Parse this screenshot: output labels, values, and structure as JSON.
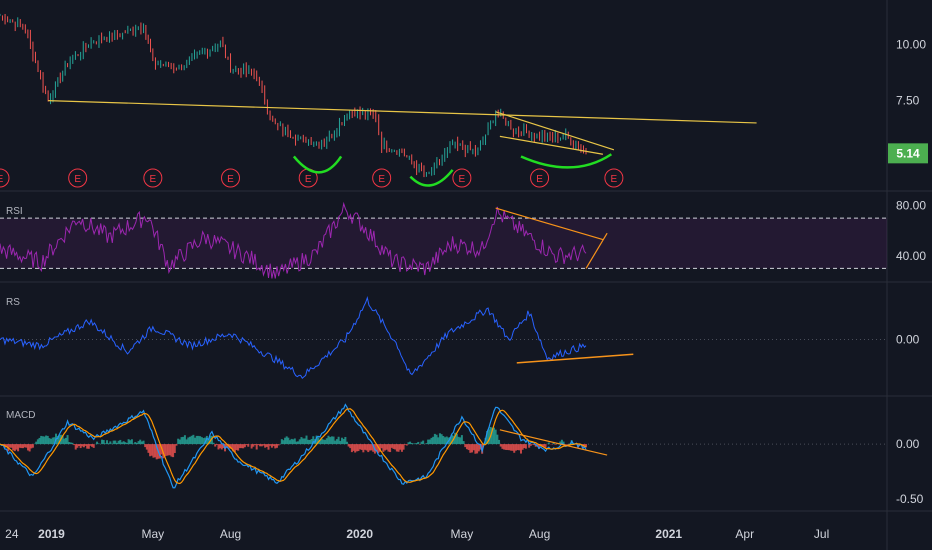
{
  "chart_data": [
    {
      "type": "line",
      "panel": "price",
      "ylim": [
        3.5,
        12
      ],
      "yticks": [
        "10.00",
        "7.50"
      ],
      "last_price": "5.14",
      "last_price_color": "#4caf50",
      "earnings_marker_label": "E",
      "earnings_dates": [
        "2018-11-01",
        "2019-02-01",
        "2019-05-01",
        "2019-08-01",
        "2019-11-01",
        "2020-01-27",
        "2020-05-01",
        "2020-08-01",
        "2020-10-28"
      ],
      "series": [
        {
          "values": [
            {
              "x": "2018-11-01",
              "y": 11.3
            },
            {
              "x": "2018-12-01",
              "y": 10.7
            },
            {
              "x": "2018-12-28",
              "y": 7.5
            },
            {
              "x": "2019-01-20",
              "y": 9.2
            },
            {
              "x": "2019-02-20",
              "y": 10.2
            },
            {
              "x": "2019-03-20",
              "y": 10.4
            },
            {
              "x": "2019-04-20",
              "y": 10.9
            },
            {
              "x": "2019-05-01",
              "y": 9.2
            },
            {
              "x": "2019-06-01",
              "y": 9.0
            },
            {
              "x": "2019-07-20",
              "y": 10.1
            },
            {
              "x": "2019-08-01",
              "y": 9.0
            },
            {
              "x": "2019-09-01",
              "y": 8.6
            },
            {
              "x": "2019-09-20",
              "y": 6.5
            },
            {
              "x": "2019-10-20",
              "y": 5.8
            },
            {
              "x": "2019-11-20",
              "y": 5.6
            },
            {
              "x": "2019-12-20",
              "y": 7.0
            },
            {
              "x": "2020-01-20",
              "y": 6.8
            },
            {
              "x": "2020-01-27",
              "y": 5.5
            },
            {
              "x": "2020-02-20",
              "y": 5.2
            },
            {
              "x": "2020-03-20",
              "y": 4.1
            },
            {
              "x": "2020-04-20",
              "y": 5.5
            },
            {
              "x": "2020-05-20",
              "y": 5.2
            },
            {
              "x": "2020-06-10",
              "y": 7.0
            },
            {
              "x": "2020-07-01",
              "y": 6.2
            },
            {
              "x": "2020-08-01",
              "y": 5.9
            },
            {
              "x": "2020-09-01",
              "y": 5.9
            },
            {
              "x": "2020-09-25",
              "y": 5.14
            }
          ]
        }
      ],
      "trendlines": [
        {
          "color": "#e8c547",
          "points": [
            {
              "x": "2018-12-28",
              "y": 7.5
            },
            {
              "x": "2021-04-15",
              "y": 6.5
            }
          ]
        },
        {
          "color": "#e8c547",
          "points": [
            {
              "x": "2020-06-10",
              "y": 7.0
            },
            {
              "x": "2020-10-28",
              "y": 5.3
            }
          ]
        },
        {
          "color": "#e8c547",
          "points": [
            {
              "x": "2020-06-15",
              "y": 5.9
            },
            {
              "x": "2020-10-15",
              "y": 5.1
            }
          ]
        }
      ],
      "highlight_curves": [
        {
          "color": "#22dd22",
          "points": [
            {
              "x": "2019-10-15",
              "y": 5.0
            },
            {
              "x": "2019-11-15",
              "y": 4.2
            },
            {
              "x": "2019-12-10",
              "y": 5.0
            }
          ]
        },
        {
          "color": "#22dd22",
          "points": [
            {
              "x": "2020-03-01",
              "y": 4.1
            },
            {
              "x": "2020-03-25",
              "y": 3.8
            },
            {
              "x": "2020-04-20",
              "y": 4.4
            }
          ]
        },
        {
          "color": "#22dd22",
          "points": [
            {
              "x": "2020-07-10",
              "y": 5.0
            },
            {
              "x": "2020-09-10",
              "y": 4.6
            },
            {
              "x": "2020-10-25",
              "y": 5.1
            }
          ]
        }
      ]
    },
    {
      "type": "line",
      "panel": "rsi",
      "label": "RSI",
      "ylim": [
        20,
        90
      ],
      "yticks": [
        "80.00",
        "40.00"
      ],
      "bands": [
        70,
        30
      ],
      "color": "#9c27b0",
      "series": [
        {
          "values": [
            {
              "x": "2018-11-01",
              "y": 45
            },
            {
              "x": "2018-12-20",
              "y": 35
            },
            {
              "x": "2019-02-01",
              "y": 70
            },
            {
              "x": "2019-03-10",
              "y": 55
            },
            {
              "x": "2019-04-25",
              "y": 72
            },
            {
              "x": "2019-05-20",
              "y": 32
            },
            {
              "x": "2019-07-01",
              "y": 55
            },
            {
              "x": "2019-08-20",
              "y": 40
            },
            {
              "x": "2019-09-25",
              "y": 25
            },
            {
              "x": "2019-11-10",
              "y": 42
            },
            {
              "x": "2019-12-15",
              "y": 78
            },
            {
              "x": "2020-01-10",
              "y": 60
            },
            {
              "x": "2020-02-10",
              "y": 35
            },
            {
              "x": "2020-03-20",
              "y": 30
            },
            {
              "x": "2020-04-20",
              "y": 50
            },
            {
              "x": "2020-05-25",
              "y": 45
            },
            {
              "x": "2020-06-10",
              "y": 75
            },
            {
              "x": "2020-07-20",
              "y": 55
            },
            {
              "x": "2020-08-20",
              "y": 40
            },
            {
              "x": "2020-09-25",
              "y": 42
            }
          ]
        }
      ],
      "trendlines": [
        {
          "color": "#f7931a",
          "points": [
            {
              "x": "2020-06-10",
              "y": 78
            },
            {
              "x": "2020-10-15",
              "y": 53
            }
          ]
        },
        {
          "color": "#f7931a",
          "points": [
            {
              "x": "2020-09-25",
              "y": 30
            },
            {
              "x": "2020-10-20",
              "y": 58
            }
          ]
        }
      ]
    },
    {
      "type": "line",
      "panel": "rs",
      "label": "RS",
      "ylim": [
        -0.45,
        0.45
      ],
      "yticks": [
        "0.00"
      ],
      "color": "#2962ff",
      "series": [
        {
          "values": [
            {
              "x": "2018-11-01",
              "y": 0.0
            },
            {
              "x": "2018-12-20",
              "y": -0.05
            },
            {
              "x": "2019-02-15",
              "y": 0.15
            },
            {
              "x": "2019-04-01",
              "y": -0.1
            },
            {
              "x": "2019-05-01",
              "y": 0.1
            },
            {
              "x": "2019-06-15",
              "y": -0.05
            },
            {
              "x": "2019-08-01",
              "y": 0.05
            },
            {
              "x": "2019-09-20",
              "y": -0.15
            },
            {
              "x": "2019-10-25",
              "y": -0.3
            },
            {
              "x": "2019-12-15",
              "y": 0.0
            },
            {
              "x": "2020-01-10",
              "y": 0.32
            },
            {
              "x": "2020-02-15",
              "y": -0.05
            },
            {
              "x": "2020-03-01",
              "y": -0.3
            },
            {
              "x": "2020-04-15",
              "y": 0.05
            },
            {
              "x": "2020-06-01",
              "y": 0.25
            },
            {
              "x": "2020-06-25",
              "y": 0.0
            },
            {
              "x": "2020-07-20",
              "y": 0.22
            },
            {
              "x": "2020-08-10",
              "y": -0.15
            },
            {
              "x": "2020-09-10",
              "y": -0.08
            },
            {
              "x": "2020-09-25",
              "y": -0.05
            }
          ]
        }
      ],
      "trendlines": [
        {
          "color": "#f7931a",
          "points": [
            {
              "x": "2020-07-05",
              "y": -0.19
            },
            {
              "x": "2020-11-20",
              "y": -0.12
            }
          ]
        }
      ]
    },
    {
      "type": "line",
      "panel": "macd",
      "label": "MACD",
      "ylim": [
        -0.6,
        0.42
      ],
      "yticks": [
        "0.00",
        "-0.50"
      ],
      "macd_color": "#2196f3",
      "signal_color": "#ff9800",
      "histogram_colors": [
        "#26a69a",
        "#ef5350"
      ],
      "series": [
        {
          "name": "",
          "values": [
            {
              "x": "2018-11-01",
              "y": 0.0
            },
            {
              "x": "2018-12-10",
              "y": -0.3
            },
            {
              "x": "2019-01-20",
              "y": 0.2
            },
            {
              "x": "2019-02-20",
              "y": 0.05
            },
            {
              "x": "2019-04-20",
              "y": 0.3
            },
            {
              "x": "2019-05-25",
              "y": -0.4
            },
            {
              "x": "2019-07-10",
              "y": 0.1
            },
            {
              "x": "2019-08-10",
              "y": -0.15
            },
            {
              "x": "2019-09-25",
              "y": -0.35
            },
            {
              "x": "2019-10-20",
              "y": -0.15
            },
            {
              "x": "2019-12-15",
              "y": 0.35
            },
            {
              "x": "2020-01-15",
              "y": 0.0
            },
            {
              "x": "2020-02-20",
              "y": -0.35
            },
            {
              "x": "2020-03-20",
              "y": -0.3
            },
            {
              "x": "2020-05-01",
              "y": 0.25
            },
            {
              "x": "2020-05-25",
              "y": -0.05
            },
            {
              "x": "2020-06-10",
              "y": 0.35
            },
            {
              "x": "2020-07-10",
              "y": 0.05
            },
            {
              "x": "2020-08-10",
              "y": -0.05
            },
            {
              "x": "2020-09-10",
              "y": 0.02
            },
            {
              "x": "2020-09-25",
              "y": -0.05
            }
          ]
        }
      ],
      "trendlines": [
        {
          "color": "#f7931a",
          "points": [
            {
              "x": "2020-06-15",
              "y": 0.13
            },
            {
              "x": "2020-10-20",
              "y": -0.1
            }
          ]
        }
      ]
    }
  ],
  "time_axis": {
    "labels": [
      {
        "text": "24",
        "date": "2018-11-15",
        "bold": false
      },
      {
        "text": "2019",
        "date": "2019-01-01",
        "bold": true
      },
      {
        "text": "May",
        "date": "2019-05-01",
        "bold": false
      },
      {
        "text": "Aug",
        "date": "2019-08-01",
        "bold": false
      },
      {
        "text": "2020",
        "date": "2020-01-01",
        "bold": true
      },
      {
        "text": "May",
        "date": "2020-05-01",
        "bold": false
      },
      {
        "text": "Aug",
        "date": "2020-08-01",
        "bold": false
      },
      {
        "text": "2021",
        "date": "2021-01-01",
        "bold": true
      },
      {
        "text": "Apr",
        "date": "2021-04-01",
        "bold": false
      },
      {
        "text": "Jul",
        "date": "2021-07-01",
        "bold": false
      }
    ]
  }
}
